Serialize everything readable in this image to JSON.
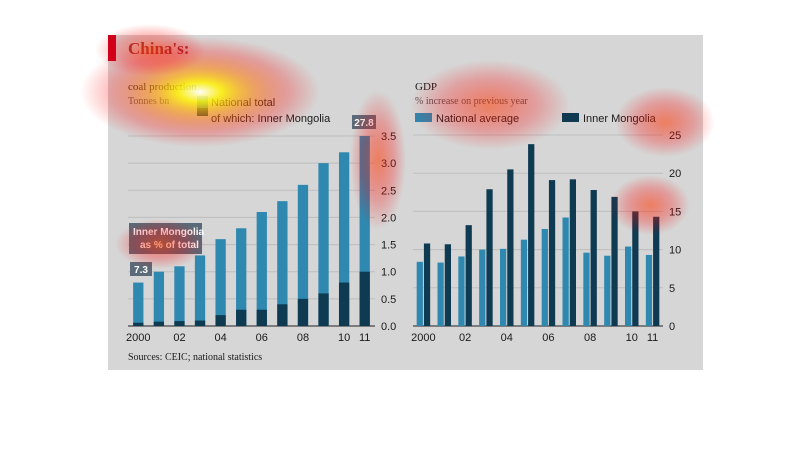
{
  "figure": {
    "title": "China's:",
    "source": "Sources: CEIC; national statistics"
  },
  "colors": {
    "background": "#d6d6d6",
    "accent": "#c8001e",
    "bar_light": "#2f88b0",
    "bar_dark": "#0e3a52",
    "highlight_label": "#5a6a78"
  },
  "chart_data": [
    {
      "type": "bar",
      "title": "coal production",
      "subtitle": "Tonnes bn",
      "legend": [
        "National total",
        "of which: Inner Mongolia"
      ],
      "legend_placement": "top",
      "x": [
        "2000",
        "2001",
        "2002",
        "2003",
        "2004",
        "2005",
        "2006",
        "2007",
        "2008",
        "2009",
        "2010",
        "2011"
      ],
      "x_tick_labels": [
        "2000",
        "02",
        "04",
        "06",
        "08",
        "10",
        "11"
      ],
      "series": [
        {
          "name": "National total",
          "values": [
            0.8,
            1.0,
            1.1,
            1.3,
            1.6,
            1.8,
            2.1,
            2.3,
            2.6,
            3.0,
            3.2,
            3.5
          ]
        },
        {
          "name": "of which: Inner Mongolia",
          "values": [
            0.06,
            0.08,
            0.09,
            0.1,
            0.2,
            0.3,
            0.3,
            0.4,
            0.5,
            0.6,
            0.8,
            1.0
          ]
        }
      ],
      "ylim": [
        0,
        3.5
      ],
      "y_ticks": [
        0,
        0.5,
        1.0,
        1.5,
        2.0,
        2.5,
        3.0,
        3.5
      ],
      "y_axis_side": "right",
      "grid": true,
      "annotations": {
        "callout": "Inner Mongolia as % of total",
        "start_value": "7.3",
        "end_value": "27.8"
      }
    },
    {
      "type": "bar",
      "title": "GDP",
      "subtitle": "% increase on previous year",
      "legend": [
        "National average",
        "Inner Mongolia"
      ],
      "legend_placement": "top",
      "x": [
        "2000",
        "2001",
        "2002",
        "2003",
        "2004",
        "2005",
        "2006",
        "2007",
        "2008",
        "2009",
        "2010",
        "2011"
      ],
      "x_tick_labels": [
        "2000",
        "02",
        "04",
        "06",
        "08",
        "10",
        "11"
      ],
      "series": [
        {
          "name": "National average",
          "values": [
            8.4,
            8.3,
            9.1,
            10.0,
            10.1,
            11.3,
            12.7,
            14.2,
            9.6,
            9.2,
            10.4,
            9.3
          ]
        },
        {
          "name": "Inner Mongolia",
          "values": [
            10.8,
            10.7,
            13.2,
            17.9,
            20.5,
            23.8,
            19.1,
            19.2,
            17.8,
            16.9,
            15.0,
            14.3
          ]
        }
      ],
      "ylim": [
        0,
        25
      ],
      "y_ticks": [
        0,
        5,
        10,
        15,
        20,
        25
      ],
      "y_axis_side": "right",
      "grid": true
    }
  ]
}
